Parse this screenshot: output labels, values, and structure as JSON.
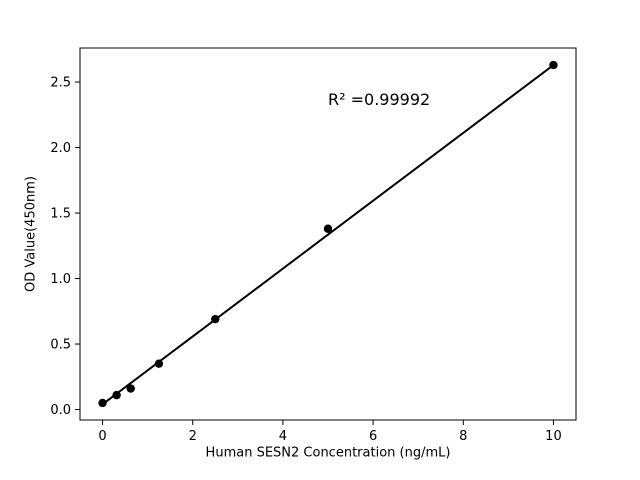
{
  "figure": {
    "background": "#ffffff"
  },
  "chart_data": {
    "type": "scatter",
    "title": "",
    "xlabel": "Human SESN2 Concentration (ng/mL)",
    "ylabel": "OD Value(450nm)",
    "points": {
      "x": [
        0,
        0.3125,
        0.625,
        1.25,
        2.5,
        5,
        10
      ],
      "y": [
        0.05,
        0.11,
        0.16,
        0.35,
        0.69,
        1.38,
        2.63
      ]
    },
    "fit_line": {
      "x1": 0,
      "y1": 0.04,
      "x2": 10,
      "y2": 2.63
    },
    "annotation": {
      "text": "R² =0.99992",
      "x": 5.0,
      "y": 2.38
    },
    "xlim": [
      -0.5,
      10.5
    ],
    "ylim": [
      -0.08,
      2.76
    ],
    "xticks": [
      0,
      2,
      4,
      6,
      8,
      10
    ],
    "xtick_labels": [
      "0",
      "2",
      "4",
      "6",
      "8",
      "10"
    ],
    "yticks": [
      0,
      0.5,
      1.0,
      1.5,
      2.0,
      2.5
    ],
    "ytick_labels": [
      "0.0",
      "0.5",
      "1.0",
      "1.5",
      "2.0",
      "2.5"
    ],
    "grid": false,
    "legend": null,
    "colors": {
      "marker": "#000000",
      "line": "#000000",
      "axis": "#000000",
      "background": "#ffffff"
    }
  }
}
